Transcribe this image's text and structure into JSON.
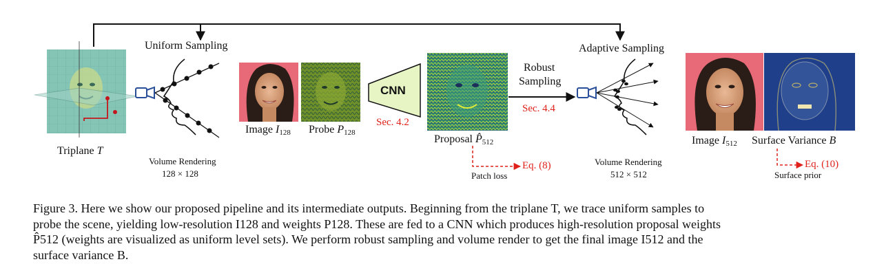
{
  "labels": {
    "uniform_sampling": "Uniform Sampling",
    "adaptive_sampling": "Adaptive Sampling",
    "triplane": "Triplane",
    "triplane_var": "T",
    "volume_rendering_left": "Volume Rendering",
    "res_left": "128 × 128",
    "volume_rendering_right": "Volume Rendering",
    "res_right": "512 × 512",
    "image_128_prefix": "Image",
    "image_128_var": "I",
    "image_128_sub": "128",
    "probe_prefix": "Probe",
    "probe_var": "P",
    "probe_sub": "128",
    "cnn": "CNN",
    "sec42": "Sec. 4.2",
    "proposal_prefix": "Proposal",
    "proposal_var": "P̂",
    "proposal_sub": "512",
    "robust": "Robust",
    "sampling": "Sampling",
    "sec44": "Sec. 4.4",
    "eq8": "Eq. (8)",
    "patch_loss": "Patch loss",
    "image_512_prefix": "Image",
    "image_512_var": "I",
    "image_512_sub": "512",
    "surface_variance": "Surface Variance",
    "surface_var": "B",
    "eq10": "Eq. (10)",
    "surface_prior": "Surface prior"
  },
  "caption": {
    "line1": "Figure 3. Here we show our proposed pipeline and its intermediate outputs. Beginning from the triplane T, we trace uniform samples to",
    "line2": "probe the scene, yielding low-resolution I128 and weights P128. These are fed to a CNN which produces high-resolution proposal weights",
    "line3": "P̂512 (weights are visualized as uniform level sets). We perform robust sampling and volume render to get the final image I512 and the",
    "line4": "surface variance B."
  },
  "colors": {
    "accent_red": "#e0201a",
    "cnn_fill": "#e7f5c4",
    "triplane_teal": "#4aa39a",
    "camera_blue": "#2a4f9a"
  }
}
